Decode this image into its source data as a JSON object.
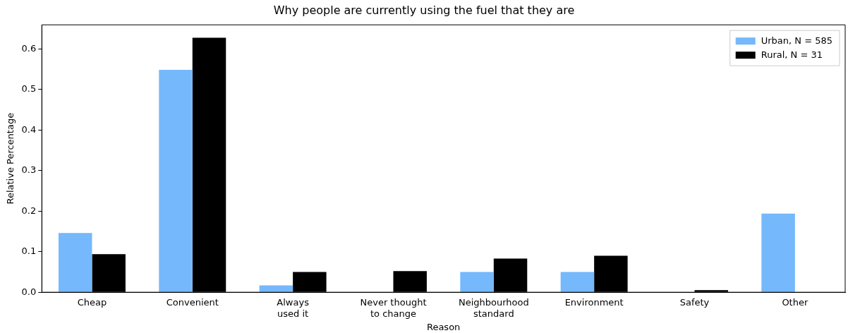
{
  "chart_data": {
    "type": "bar",
    "title": "Why people are currently using the fuel that they are",
    "xlabel": "Reason",
    "ylabel": "Relative Percentage",
    "categories": [
      "Cheap",
      "Convenient",
      "Always\nused it",
      "Never thought\nto change",
      "Neighbourhood\nstandard",
      "Environment",
      "Safety",
      "Other"
    ],
    "series": [
      {
        "name": "Urban, N = 585",
        "color": "#75b8fb",
        "values": [
          0.146,
          0.548,
          0.017,
          0,
          0.05,
          0.05,
          0,
          0.194
        ]
      },
      {
        "name": "Rural, N = 31",
        "color": "#000000",
        "values": [
          0.094,
          0.627,
          0.05,
          0.052,
          0.083,
          0.09,
          0.005,
          0
        ]
      }
    ],
    "ylim": [
      0,
      0.659
    ],
    "yticks": [
      {
        "value": 0,
        "label": "0.0"
      },
      {
        "value": 0.1,
        "label": "0.1"
      },
      {
        "value": 0.2,
        "label": "0.2"
      },
      {
        "value": 0.3,
        "label": "0.3"
      },
      {
        "value": 0.4,
        "label": "0.4"
      },
      {
        "value": 0.5,
        "label": "0.5"
      },
      {
        "value": 0.6,
        "label": "0.6"
      }
    ],
    "legend": "top right",
    "grid": false
  }
}
